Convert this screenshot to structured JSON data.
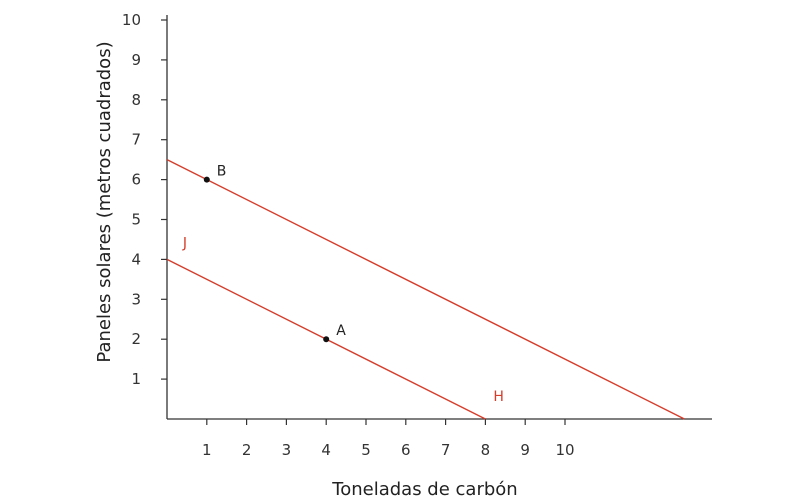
{
  "chart_data": {
    "type": "line",
    "title": "",
    "xlabel": "Toneladas de carbón",
    "ylabel": "Paneles solares (metros cuadrados)",
    "xlim": [
      0,
      13.6
    ],
    "ylim": [
      0,
      10
    ],
    "x_ticks": [
      1,
      2,
      3,
      4,
      5,
      6,
      7,
      8,
      9,
      10
    ],
    "y_ticks": [
      1,
      2,
      3,
      4,
      5,
      6,
      7,
      8,
      9,
      10
    ],
    "grid": false,
    "colors": {
      "line": "#d63c2a",
      "axis": "#333333",
      "point": "#111111"
    },
    "series": [
      {
        "name": "",
        "x": [
          0,
          8
        ],
        "y": [
          4,
          0
        ]
      },
      {
        "name": "",
        "x": [
          0,
          13
        ],
        "y": [
          6.5,
          0
        ]
      }
    ],
    "line_labels": [
      {
        "text": "J",
        "x": 0.4,
        "y": 4.3
      },
      {
        "text": "H",
        "x": 8.2,
        "y": 0.45
      }
    ],
    "points": [
      {
        "label": "A",
        "x": 4,
        "y": 2
      },
      {
        "label": "B",
        "x": 1,
        "y": 6
      }
    ]
  }
}
